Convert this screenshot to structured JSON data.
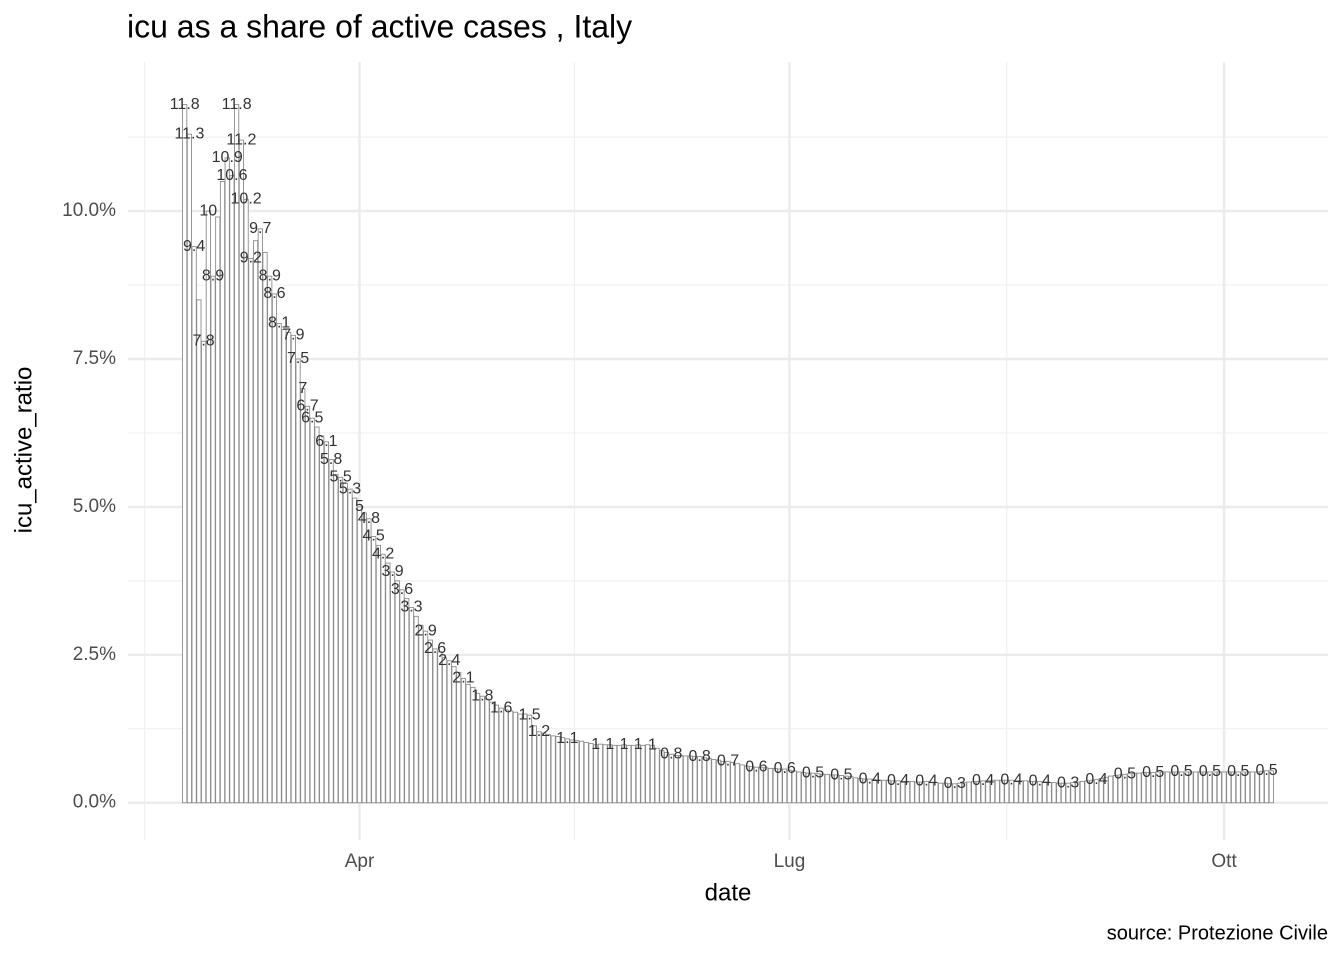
{
  "chart_data": {
    "type": "bar",
    "title": "icu as a share of active cases , Italy",
    "x_label": "date",
    "y_label": "icu_active_ratio",
    "caption": "source: Protezione Civile",
    "color": "#8c8c8c",
    "grid": true,
    "xlim": [
      -12,
      242
    ],
    "xticks": [
      {
        "value": 37,
        "label": "Apr"
      },
      {
        "value": 128,
        "label": "Lug"
      },
      {
        "value": 220,
        "label": "Ott"
      }
    ],
    "ylim": [
      -0.63,
      12.52
    ],
    "yticks": [
      {
        "value": 0,
        "label": "0.0%"
      },
      {
        "value": 2.5,
        "label": "2.5%"
      },
      {
        "value": 5,
        "label": "5.0%"
      },
      {
        "value": 7.5,
        "label": "7.5%"
      },
      {
        "value": 10,
        "label": "10.0%"
      }
    ],
    "values": [
      11.8,
      11.3,
      9.4,
      8.5,
      7.8,
      10,
      8.9,
      9.9,
      10.5,
      10.9,
      10.6,
      11.8,
      11.2,
      10.2,
      9.2,
      9.5,
      9.7,
      9.3,
      8.9,
      8.6,
      8.1,
      8,
      7.95,
      7.9,
      7.5,
      7,
      6.7,
      6.5,
      6.35,
      6.2,
      6.1,
      5.8,
      5.55,
      5.5,
      5.4,
      5.3,
      5.15,
      5,
      4.9,
      4.8,
      4.5,
      4.35,
      4.2,
      4.05,
      3.9,
      3.75,
      3.6,
      3.45,
      3.3,
      3.15,
      3,
      2.9,
      2.75,
      2.6,
      2.55,
      2.45,
      2.4,
      2.3,
      2.2,
      2.1,
      2,
      1.95,
      1.85,
      1.8,
      1.75,
      1.7,
      1.65,
      1.6,
      1.57,
      1.55,
      1.53,
      1.5,
      1.5,
      1.48,
      1.3,
      1.2,
      1.18,
      1.15,
      1.13,
      1.12,
      1.1,
      1.08,
      1.06,
      1.05,
      1.04,
      1.02,
      1,
      0.98,
      0.99,
      0.98,
      0.98,
      0.97,
      0.97,
      0.98,
      0.97,
      0.97,
      0.98,
      0.97,
      0.98,
      0.97,
      0.92,
      0.88,
      0.85,
      0.82,
      0.8,
      0.8,
      0.79,
      0.79,
      0.78,
      0.78,
      0.76,
      0.75,
      0.73,
      0.72,
      0.7,
      0.7,
      0.68,
      0.66,
      0.64,
      0.62,
      0.61,
      0.6,
      0.6,
      0.59,
      0.58,
      0.58,
      0.57,
      0.57,
      0.55,
      0.54,
      0.52,
      0.51,
      0.5,
      0.5,
      0.49,
      0.48,
      0.48,
      0.47,
      0.47,
      0.46,
      0.45,
      0.44,
      0.42,
      0.41,
      0.4,
      0.4,
      0.39,
      0.38,
      0.38,
      0.38,
      0.37,
      0.37,
      0.36,
      0.36,
      0.36,
      0.35,
      0.35,
      0.36,
      0.34,
      0.34,
      0.33,
      0.33,
      0.32,
      0.32,
      0.33,
      0.34,
      0.35,
      0.36,
      0.36,
      0.37,
      0.37,
      0.38,
      0.38,
      0.38,
      0.38,
      0.38,
      0.37,
      0.37,
      0.37,
      0.36,
      0.36,
      0.36,
      0.35,
      0.34,
      0.34,
      0.33,
      0.33,
      0.33,
      0.34,
      0.35,
      0.36,
      0.37,
      0.38,
      0.39,
      0.41,
      0.43,
      0.45,
      0.46,
      0.47,
      0.48,
      0.49,
      0.5,
      0.5,
      0.51,
      0.51,
      0.51,
      0.52,
      0.52,
      0.52,
      0.52,
      0.52,
      0.52,
      0.52,
      0.52,
      0.52,
      0.52,
      0.52,
      0.52,
      0.52,
      0.52,
      0.52,
      0.52,
      0.52,
      0.52,
      0.52,
      0.52,
      0.52,
      0.52,
      0.53,
      0.54,
      0.54
    ],
    "value_labels": [
      "11.8",
      "11.3",
      "9.4",
      null,
      "7.8",
      "10",
      "8.9",
      null,
      null,
      "10.9",
      "10.6",
      "11.8",
      "11.2",
      "10.2",
      "9.2",
      null,
      "9.7",
      null,
      "8.9",
      "8.6",
      "8.1",
      null,
      null,
      "7.9",
      "7.5",
      "7",
      "6.7",
      "6.5",
      null,
      null,
      "6.1",
      "5.8",
      null,
      "5.5",
      null,
      "5.3",
      null,
      "5",
      null,
      "4.8",
      "4.5",
      null,
      "4.2",
      null,
      "3.9",
      null,
      "3.6",
      null,
      "3.3",
      null,
      null,
      "2.9",
      null,
      "2.6",
      null,
      null,
      "2.4",
      null,
      null,
      "2.1",
      null,
      null,
      null,
      "1.8",
      null,
      null,
      null,
      "1.6",
      null,
      null,
      null,
      null,
      null,
      "1.5",
      null,
      "1.2",
      null,
      null,
      null,
      null,
      null,
      "1.1",
      null,
      null,
      null,
      null,
      null,
      "1",
      null,
      null,
      "1",
      null,
      null,
      "1",
      null,
      null,
      "1",
      null,
      null,
      "1",
      null,
      null,
      null,
      "0.8",
      null,
      null,
      null,
      null,
      null,
      "0.8",
      null,
      null,
      null,
      null,
      null,
      "0.7",
      null,
      null,
      null,
      null,
      null,
      "0.6",
      null,
      null,
      null,
      null,
      null,
      "0.6",
      null,
      null,
      null,
      null,
      null,
      "0.5",
      null,
      null,
      null,
      null,
      null,
      "0.5",
      null,
      null,
      null,
      null,
      null,
      "0.4",
      null,
      null,
      null,
      null,
      null,
      "0.4",
      null,
      null,
      null,
      null,
      null,
      "0.4",
      null,
      null,
      null,
      null,
      null,
      "0.3",
      null,
      null,
      null,
      null,
      null,
      "0.4",
      null,
      null,
      null,
      null,
      null,
      "0.4",
      null,
      null,
      null,
      null,
      null,
      "0.4",
      null,
      null,
      null,
      null,
      null,
      "0.3",
      null,
      null,
      null,
      null,
      null,
      "0.4",
      null,
      null,
      null,
      null,
      null,
      "0.5",
      null,
      null,
      null,
      null,
      null,
      "0.5",
      null,
      null,
      null,
      null,
      null,
      "0.5",
      null,
      null,
      null,
      null,
      null,
      "0.5",
      null,
      null,
      null,
      null,
      null,
      "0.5",
      null,
      null,
      null,
      null,
      null,
      "0.5",
      null
    ]
  }
}
